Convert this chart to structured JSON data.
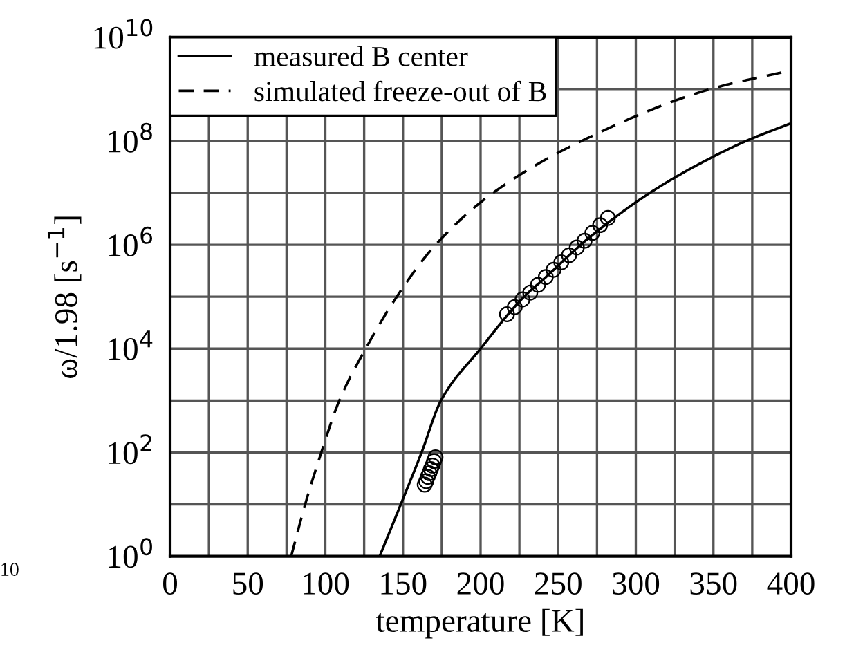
{
  "chart_data": {
    "type": "line",
    "xlabel": "temperature [K]",
    "ylabel": "ω/1.98 [s$^{−1}$]",
    "log": "y",
    "grid": true,
    "legend": "top left",
    "xlim": [
      0,
      400
    ],
    "xticks": [
      0,
      {
        "value": 25,
        "label": null
      },
      50,
      {
        "value": 75,
        "label": null
      },
      100,
      {
        "value": 125,
        "label": null
      },
      150,
      {
        "value": 175,
        "label": null
      },
      200,
      {
        "value": 225,
        "label": null
      },
      250,
      {
        "value": 275,
        "label": null
      },
      300,
      {
        "value": 325,
        "label": null
      },
      350,
      {
        "value": 375,
        "label": null
      },
      400
    ],
    "ylim": [
      1,
      10000000000.0
    ],
    "yticks": [
      {
        "value": 1,
        "label": "10$^{0}$"
      },
      {
        "value": 10,
        "label": null
      },
      {
        "value": 100,
        "label": "10$^{2}$"
      },
      {
        "value": 1000,
        "label": null
      },
      {
        "value": 10000,
        "label": "10$^{4}$"
      },
      {
        "value": 100000,
        "label": null
      },
      {
        "value": 1000000,
        "label": "10$^{6}$"
      },
      {
        "value": 10000000,
        "label": null
      },
      {
        "value": 100000000,
        "label": "10$^{8}$"
      },
      {
        "value": 1000000000,
        "label": null
      },
      {
        "value": 10000000000,
        "label": "10$^{10}$"
      }
    ],
    "series": [
      {
        "name": "measured B center",
        "line_style": "solid",
        "color": "#000000",
        "x": [
          135,
          148.6,
          162,
          174.5,
          200,
          228,
          240,
          269,
          309,
          340,
          371,
          400
        ],
        "values": [
          1,
          10,
          100,
          1000,
          10000,
          100000,
          210000,
          1300000,
          10000000,
          35000000,
          100000000,
          220000000
        ]
      },
      {
        "name": "simulated freeze-out of B",
        "line_style": "dashed",
        "color": "#000000",
        "x": [
          78,
          87,
          97.4,
          109,
          126,
          146,
          171,
          208,
          265,
          348,
          400
        ],
        "values": [
          1,
          10,
          100,
          1000,
          10000,
          100000,
          1000000,
          10000000,
          100000000,
          1000000000,
          2300000000
        ]
      },
      {
        "type": "scatter",
        "marker": "circle",
        "color": "#000000",
        "x": [
          217,
          222,
          227,
          232,
          237,
          242,
          247,
          252,
          257,
          262,
          267,
          272,
          277,
          282
        ],
        "values": [
          46000,
          63000,
          89000,
          120000,
          170000,
          240000,
          330000,
          460000,
          630000,
          890000,
          1200000,
          1700000,
          2400000,
          3300000
        ]
      },
      {
        "type": "scatter",
        "marker": "circle",
        "color": "#000000",
        "x": [
          164,
          165,
          166,
          167,
          168,
          169,
          170,
          171
        ],
        "values": [
          24,
          28,
          34,
          40,
          48,
          56,
          68,
          81
        ]
      }
    ],
    "annotations": [
      "10"
    ]
  }
}
